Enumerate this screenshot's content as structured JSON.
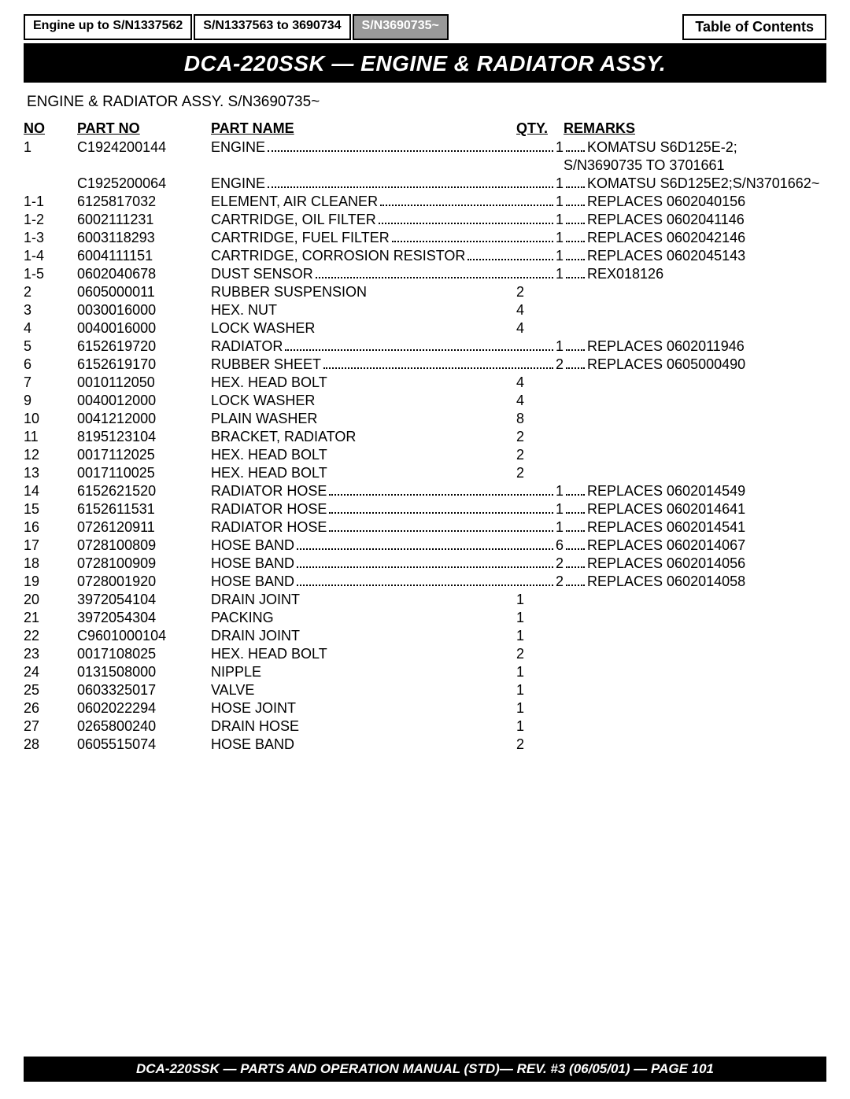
{
  "tabs": [
    {
      "label": "Engine up to S/N1337562",
      "active": false
    },
    {
      "label": "S/N1337563 to 3690734",
      "active": false
    },
    {
      "label": "S/N3690735~",
      "active": true
    }
  ],
  "toc_label": "Table of Contents",
  "title": "DCA-220SSK — ENGINE & RADIATOR ASSY.",
  "subtitle": "ENGINE & RADIATOR ASSY. S/N3690735~",
  "headers": {
    "no": "NO",
    "partno": "PART NO",
    "name": "PART NAME",
    "qty": "QTY.",
    "remarks": "REMARKS"
  },
  "rows": [
    {
      "no": "1",
      "partno": "C1924200144",
      "name": "ENGINE",
      "qty": "1",
      "remarks": "KOMATSU S6D125E-2;",
      "dotted": true
    },
    {
      "no": "",
      "partno": "",
      "name": "",
      "qty": "",
      "remarks": "S/N3690735 TO 3701661",
      "dotted": false
    },
    {
      "no": "",
      "partno": "C1925200064",
      "name": "ENGINE",
      "qty": "1",
      "remarks": "KOMATSU S6D125E2;S/N3701662~",
      "dotted": true
    },
    {
      "no": "1-1",
      "partno": "6125817032",
      "name": "ELEMENT, AIR CLEANER",
      "qty": "1",
      "remarks": "REPLACES 0602040156",
      "dotted": true
    },
    {
      "no": "1-2",
      "partno": "6002111231",
      "name": "CARTRIDGE, OIL FILTER",
      "qty": "1",
      "remarks": "REPLACES 0602041146",
      "dotted": true
    },
    {
      "no": "1-3",
      "partno": "6003118293",
      "name": "CARTRIDGE, FUEL FILTER",
      "qty": "1",
      "remarks": "REPLACES 0602042146",
      "dotted": true
    },
    {
      "no": "1-4",
      "partno": "6004111151",
      "name": "CARTRIDGE, CORROSION RESISTOR",
      "qty": "1",
      "remarks": "REPLACES 0602045143",
      "dotted": true
    },
    {
      "no": "1-5",
      "partno": "0602040678",
      "name": "DUST SENSOR",
      "qty": "1",
      "remarks": "REX018126",
      "dotted": true
    },
    {
      "no": "2",
      "partno": "0605000011",
      "name": "RUBBER SUSPENSION",
      "qty": "2",
      "remarks": "",
      "dotted": false
    },
    {
      "no": "3",
      "partno": "0030016000",
      "name": "HEX. NUT",
      "qty": "4",
      "remarks": "",
      "dotted": false
    },
    {
      "no": "4",
      "partno": "0040016000",
      "name": "LOCK WASHER",
      "qty": "4",
      "remarks": "",
      "dotted": false
    },
    {
      "no": "5",
      "partno": "6152619720",
      "name": "RADIATOR",
      "qty": "1",
      "remarks": "REPLACES 0602011946",
      "dotted": true
    },
    {
      "no": "6",
      "partno": "6152619170",
      "name": "RUBBER SHEET",
      "qty": "2",
      "remarks": "REPLACES 0605000490",
      "dotted": true
    },
    {
      "no": "7",
      "partno": "0010112050",
      "name": "HEX. HEAD BOLT",
      "qty": "4",
      "remarks": "",
      "dotted": false
    },
    {
      "no": "9",
      "partno": "0040012000",
      "name": "LOCK WASHER",
      "qty": "4",
      "remarks": "",
      "dotted": false
    },
    {
      "no": "10",
      "partno": "0041212000",
      "name": "PLAIN WASHER",
      "qty": "8",
      "remarks": "",
      "dotted": false
    },
    {
      "no": "11",
      "partno": "8195123104",
      "name": "BRACKET, RADIATOR",
      "qty": "2",
      "remarks": "",
      "dotted": false
    },
    {
      "no": "12",
      "partno": "0017112025",
      "name": "HEX. HEAD BOLT",
      "qty": "2",
      "remarks": "",
      "dotted": false
    },
    {
      "no": "13",
      "partno": "0017110025",
      "name": "HEX. HEAD BOLT",
      "qty": "2",
      "remarks": "",
      "dotted": false
    },
    {
      "no": "14",
      "partno": "6152621520",
      "name": "RADIATOR HOSE",
      "qty": "1",
      "remarks": "REPLACES 0602014549",
      "dotted": true
    },
    {
      "no": "15",
      "partno": "6152611531",
      "name": "RADIATOR HOSE",
      "qty": "1",
      "remarks": "REPLACES 0602014641",
      "dotted": true
    },
    {
      "no": "16",
      "partno": "0726120911",
      "name": "RADIATOR HOSE",
      "qty": "1",
      "remarks": "REPLACES 0602014541",
      "dotted": true
    },
    {
      "no": "17",
      "partno": "0728100809",
      "name": "HOSE BAND",
      "qty": "6",
      "remarks": "REPLACES 0602014067",
      "dotted": true
    },
    {
      "no": "18",
      "partno": "0728100909",
      "name": "HOSE BAND",
      "qty": "2",
      "remarks": "REPLACES 0602014056",
      "dotted": true
    },
    {
      "no": "19",
      "partno": "0728001920",
      "name": "HOSE BAND",
      "qty": "2",
      "remarks": "REPLACES 0602014058",
      "dotted": true
    },
    {
      "no": "20",
      "partno": "3972054104",
      "name": "DRAIN JOINT",
      "qty": "1",
      "remarks": "",
      "dotted": false
    },
    {
      "no": "21",
      "partno": "3972054304",
      "name": "PACKING",
      "qty": "1",
      "remarks": "",
      "dotted": false
    },
    {
      "no": "22",
      "partno": "C9601000104",
      "name": "DRAIN JOINT",
      "qty": "1",
      "remarks": "",
      "dotted": false
    },
    {
      "no": "23",
      "partno": "0017108025",
      "name": "HEX. HEAD BOLT",
      "qty": "2",
      "remarks": "",
      "dotted": false
    },
    {
      "no": "24",
      "partno": "0131508000",
      "name": "NIPPLE",
      "qty": "1",
      "remarks": "",
      "dotted": false
    },
    {
      "no": "25",
      "partno": "0603325017",
      "name": "VALVE",
      "qty": "1",
      "remarks": "",
      "dotted": false
    },
    {
      "no": "26",
      "partno": "0602022294",
      "name": "HOSE JOINT",
      "qty": "1",
      "remarks": "",
      "dotted": false
    },
    {
      "no": "27",
      "partno": "0265800240",
      "name": "DRAIN HOSE",
      "qty": "1",
      "remarks": "",
      "dotted": false
    },
    {
      "no": "28",
      "partno": "0605515074",
      "name": "HOSE BAND",
      "qty": "2",
      "remarks": "",
      "dotted": false
    }
  ],
  "footer": "DCA-220SSK — PARTS AND OPERATION  MANUAL (STD)— REV. #3  (06/05/01) — PAGE 101"
}
